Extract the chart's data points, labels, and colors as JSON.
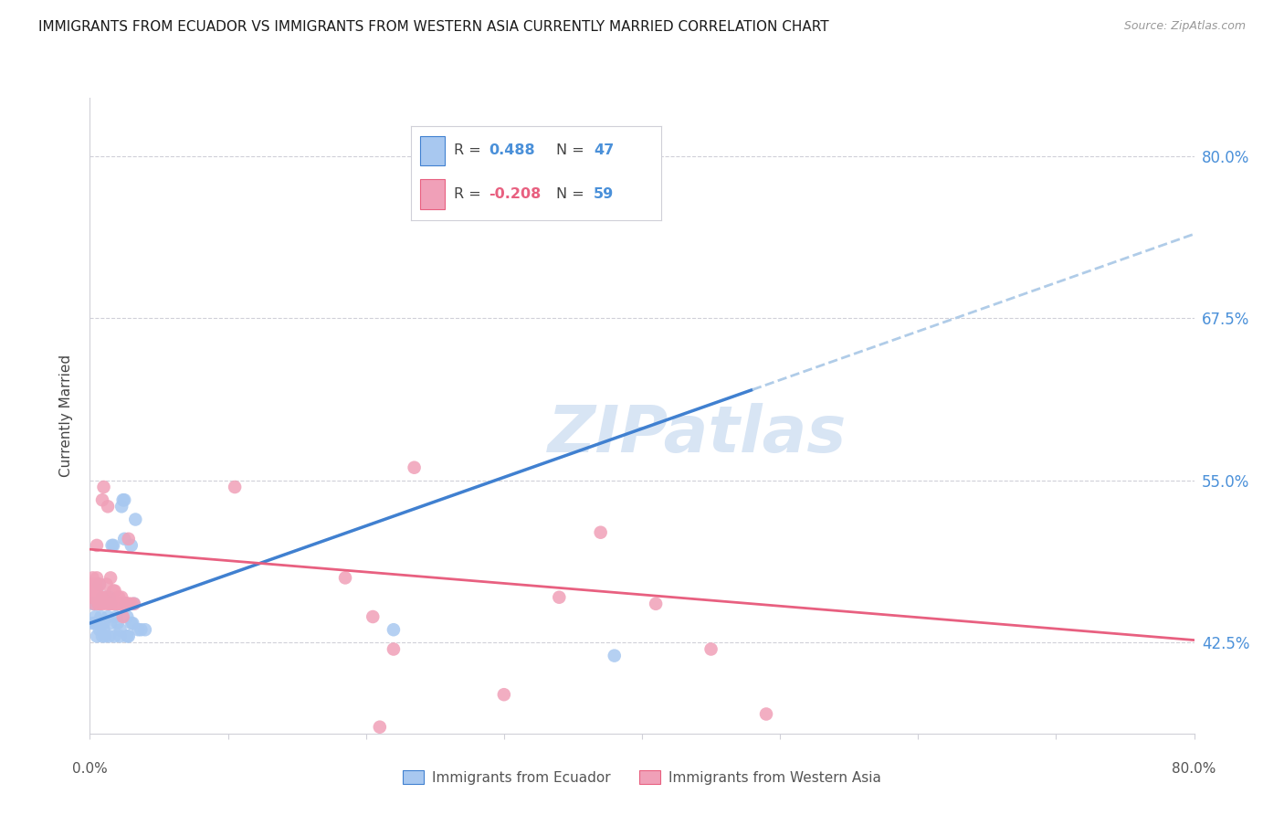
{
  "title": "IMMIGRANTS FROM ECUADOR VS IMMIGRANTS FROM WESTERN ASIA CURRENTLY MARRIED CORRELATION CHART",
  "source": "Source: ZipAtlas.com",
  "ylabel": "Currently Married",
  "y_ticks": [
    0.425,
    0.55,
    0.675,
    0.8
  ],
  "y_tick_labels": [
    "42.5%",
    "55.0%",
    "67.5%",
    "80.0%"
  ],
  "xlim": [
    0.0,
    0.8
  ],
  "ylim": [
    0.355,
    0.845
  ],
  "color_blue": "#a8c8f0",
  "color_pink": "#f0a0b8",
  "line_blue": "#4080d0",
  "line_pink": "#e86080",
  "line_dashed_blue": "#b0cce8",
  "watermark_text": "ZIPatlas",
  "watermark_color": "#c8daf0",
  "title_fontsize": 11,
  "source_fontsize": 9,
  "ecuador_points": [
    [
      0.002,
      0.44
    ],
    [
      0.002,
      0.455
    ],
    [
      0.004,
      0.445
    ],
    [
      0.004,
      0.455
    ],
    [
      0.004,
      0.44
    ],
    [
      0.005,
      0.43
    ],
    [
      0.005,
      0.44
    ],
    [
      0.007,
      0.435
    ],
    [
      0.007,
      0.455
    ],
    [
      0.007,
      0.47
    ],
    [
      0.008,
      0.445
    ],
    [
      0.009,
      0.43
    ],
    [
      0.009,
      0.46
    ],
    [
      0.01,
      0.435
    ],
    [
      0.01,
      0.44
    ],
    [
      0.011,
      0.43
    ],
    [
      0.012,
      0.46
    ],
    [
      0.013,
      0.445
    ],
    [
      0.014,
      0.43
    ],
    [
      0.014,
      0.46
    ],
    [
      0.015,
      0.44
    ],
    [
      0.015,
      0.455
    ],
    [
      0.016,
      0.5
    ],
    [
      0.017,
      0.5
    ],
    [
      0.018,
      0.43
    ],
    [
      0.019,
      0.445
    ],
    [
      0.02,
      0.44
    ],
    [
      0.022,
      0.43
    ],
    [
      0.022,
      0.435
    ],
    [
      0.023,
      0.53
    ],
    [
      0.024,
      0.535
    ],
    [
      0.025,
      0.535
    ],
    [
      0.025,
      0.505
    ],
    [
      0.026,
      0.455
    ],
    [
      0.027,
      0.43
    ],
    [
      0.027,
      0.445
    ],
    [
      0.028,
      0.43
    ],
    [
      0.03,
      0.44
    ],
    [
      0.03,
      0.5
    ],
    [
      0.031,
      0.44
    ],
    [
      0.032,
      0.455
    ],
    [
      0.033,
      0.52
    ],
    [
      0.035,
      0.435
    ],
    [
      0.037,
      0.435
    ],
    [
      0.04,
      0.435
    ],
    [
      0.22,
      0.435
    ],
    [
      0.38,
      0.415
    ]
  ],
  "western_asia_points": [
    [
      0.001,
      0.47
    ],
    [
      0.001,
      0.465
    ],
    [
      0.001,
      0.46
    ],
    [
      0.002,
      0.475
    ],
    [
      0.003,
      0.455
    ],
    [
      0.003,
      0.465
    ],
    [
      0.004,
      0.47
    ],
    [
      0.004,
      0.46
    ],
    [
      0.005,
      0.5
    ],
    [
      0.005,
      0.465
    ],
    [
      0.005,
      0.475
    ],
    [
      0.006,
      0.455
    ],
    [
      0.006,
      0.46
    ],
    [
      0.007,
      0.455
    ],
    [
      0.007,
      0.47
    ],
    [
      0.008,
      0.46
    ],
    [
      0.008,
      0.455
    ],
    [
      0.009,
      0.535
    ],
    [
      0.01,
      0.545
    ],
    [
      0.01,
      0.455
    ],
    [
      0.011,
      0.46
    ],
    [
      0.012,
      0.46
    ],
    [
      0.012,
      0.47
    ],
    [
      0.013,
      0.455
    ],
    [
      0.013,
      0.53
    ],
    [
      0.014,
      0.455
    ],
    [
      0.015,
      0.475
    ],
    [
      0.016,
      0.455
    ],
    [
      0.017,
      0.455
    ],
    [
      0.017,
      0.465
    ],
    [
      0.018,
      0.465
    ],
    [
      0.019,
      0.455
    ],
    [
      0.02,
      0.455
    ],
    [
      0.021,
      0.46
    ],
    [
      0.022,
      0.455
    ],
    [
      0.022,
      0.455
    ],
    [
      0.023,
      0.455
    ],
    [
      0.023,
      0.46
    ],
    [
      0.024,
      0.445
    ],
    [
      0.025,
      0.455
    ],
    [
      0.026,
      0.455
    ],
    [
      0.027,
      0.455
    ],
    [
      0.027,
      0.455
    ],
    [
      0.028,
      0.505
    ],
    [
      0.028,
      0.455
    ],
    [
      0.03,
      0.455
    ],
    [
      0.032,
      0.455
    ],
    [
      0.105,
      0.545
    ],
    [
      0.185,
      0.475
    ],
    [
      0.205,
      0.445
    ],
    [
      0.22,
      0.42
    ],
    [
      0.235,
      0.56
    ],
    [
      0.3,
      0.385
    ],
    [
      0.34,
      0.46
    ],
    [
      0.37,
      0.51
    ],
    [
      0.41,
      0.455
    ],
    [
      0.45,
      0.42
    ],
    [
      0.49,
      0.37
    ],
    [
      0.21,
      0.36
    ]
  ],
  "blue_line_solid": [
    [
      0.0,
      0.44
    ],
    [
      0.48,
      0.62
    ]
  ],
  "blue_line_dashed": [
    [
      0.48,
      0.62
    ],
    [
      0.8,
      0.74
    ]
  ],
  "pink_line": [
    [
      0.0,
      0.497
    ],
    [
      0.8,
      0.427
    ]
  ]
}
